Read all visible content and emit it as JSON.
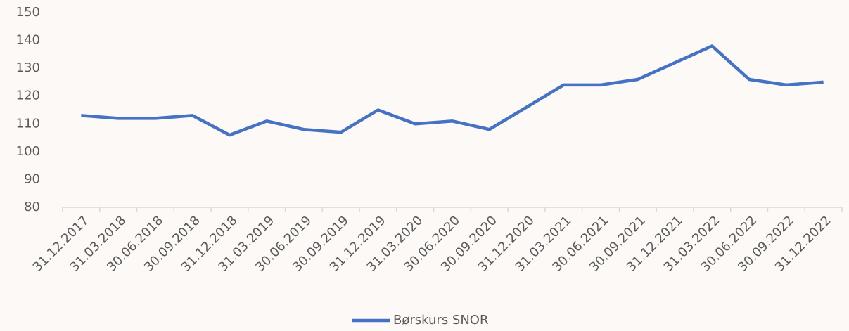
{
  "chart_data": {
    "type": "line",
    "categories": [
      "31.12.2017",
      "31.03.2018",
      "30.06.2018",
      "30.09.2018",
      "31.12.2018",
      "31.03.2019",
      "30.06.2019",
      "30.09.2019",
      "31.12.2019",
      "31.03.2020",
      "30.06.2020",
      "30.09.2020",
      "31.12.2020",
      "31.03.2021",
      "30.06.2021",
      "30.09.2021",
      "31.12.2021",
      "31.03.2022",
      "30.06.2022",
      "30.09.2022",
      "31.12.2022"
    ],
    "series": [
      {
        "name": "Børskurs SNOR",
        "color": "#4472c4",
        "values": [
          113,
          112,
          112,
          113,
          106,
          111,
          108,
          107,
          115,
          110,
          111,
          108,
          116,
          124,
          124,
          126,
          132,
          138,
          126,
          124,
          125
        ]
      }
    ],
    "ylim": [
      80,
      150
    ],
    "yticks": [
      80,
      90,
      100,
      110,
      120,
      130,
      140,
      150
    ],
    "grid": false,
    "legend": "bottom"
  }
}
